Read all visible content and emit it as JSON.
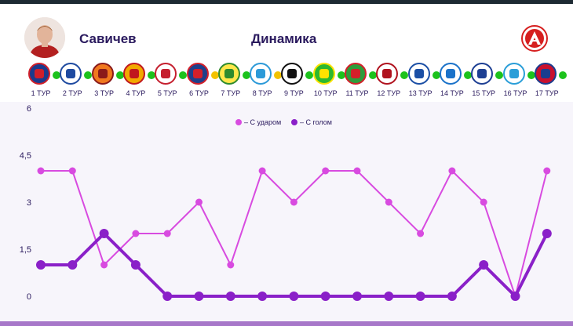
{
  "header": {
    "player_name": "Савичев",
    "section_title": "Динамика"
  },
  "rounds": [
    {
      "label": "1 ТУР",
      "dot": "green"
    },
    {
      "label": "2 ТУР",
      "dot": "green"
    },
    {
      "label": "3 ТУР",
      "dot": "green"
    },
    {
      "label": "4 ТУР",
      "dot": "green"
    },
    {
      "label": "5 ТУР",
      "dot": "green"
    },
    {
      "label": "6 ТУР",
      "dot": "yellow"
    },
    {
      "label": "7 ТУР",
      "dot": "green"
    },
    {
      "label": "8 ТУР",
      "dot": "yellow"
    },
    {
      "label": "9 ТУР",
      "dot": "green"
    },
    {
      "label": "10 ТУР",
      "dot": "green"
    },
    {
      "label": "11 ТУР",
      "dot": "green"
    },
    {
      "label": "12 ТУР",
      "dot": "green"
    },
    {
      "label": "13 ТУР",
      "dot": "green"
    },
    {
      "label": "14 ТУР",
      "dot": "green"
    },
    {
      "label": "15 ТУР",
      "dot": "green"
    },
    {
      "label": "16 ТУР",
      "dot": "green"
    },
    {
      "label": "17 ТУР",
      "dot": "green"
    }
  ],
  "colors": {
    "title": "#2a1a5e",
    "shot_series": "#d84be0",
    "goal_series": "#8a20c8",
    "dot_green": "#1cc21c",
    "dot_yellow": "#f2c200",
    "plot_bg": "#f7f5fb",
    "grid": "#e4dfee"
  },
  "chart_data": {
    "type": "line",
    "x": [
      "1 ТУР",
      "2 ТУР",
      "3 ТУР",
      "4 ТУР",
      "5 ТУР",
      "6 ТУР",
      "7 ТУР",
      "8 ТУР",
      "9 ТУР",
      "10 ТУР",
      "11 ТУР",
      "12 ТУР",
      "13 ТУР",
      "14 ТУР",
      "15 ТУР",
      "16 ТУР",
      "17 ТУР"
    ],
    "ylim": [
      0,
      6
    ],
    "yticks": [
      "6",
      "4,5",
      "3",
      "1,5",
      "0"
    ],
    "ytick_values": [
      6,
      4.5,
      3,
      1.5,
      0
    ],
    "grid": false,
    "legend_position": "top-center",
    "series": [
      {
        "name": "– С ударом",
        "values": [
          4,
          4,
          1,
          2,
          2,
          3,
          1,
          4,
          3,
          4,
          4,
          3,
          2,
          4,
          3,
          0,
          4
        ]
      },
      {
        "name": "– С голом",
        "values": [
          1,
          1,
          2,
          1,
          0,
          0,
          0,
          0,
          0,
          0,
          0,
          0,
          0,
          0,
          1,
          0,
          2
        ]
      }
    ]
  }
}
